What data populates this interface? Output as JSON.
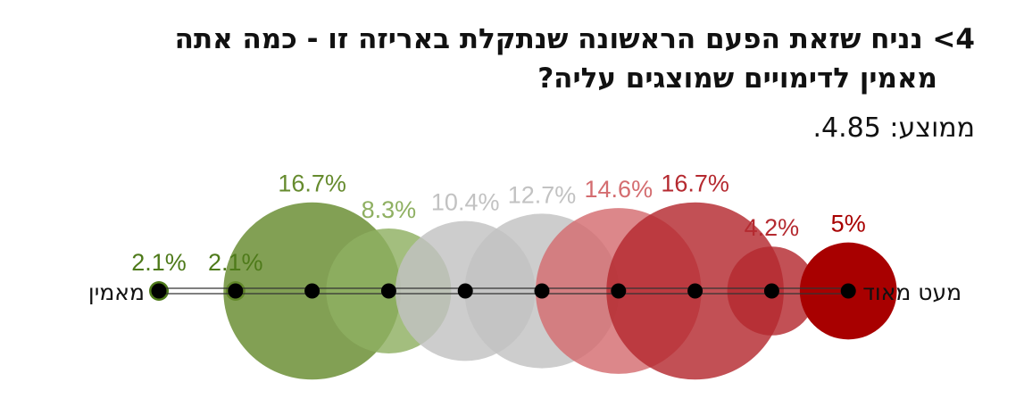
{
  "chart_data": {
    "type": "bubble-scale",
    "title_line1": "4> נניח שזאת הפעם הראשונה שנתקלת באריזה זו - כמה אתה",
    "title_line2": "מאמין לדימויים שמוצגים עליה?",
    "subtitle": "ממוצע: 4.85.",
    "left_label": "מאמין",
    "right_label": "מעט מאוד",
    "points": [
      {
        "value": 2.1,
        "label": "2.1%",
        "color": "#4e7a1a"
      },
      {
        "value": 2.1,
        "label": "2.1%",
        "color": "#4e7a1a"
      },
      {
        "value": 16.7,
        "label": "16.7%",
        "color": "#668b2e"
      },
      {
        "value": 8.3,
        "label": "8.3%",
        "color": "#8fb062"
      },
      {
        "value": 10.4,
        "label": "10.4%",
        "color": "#c2c2c2"
      },
      {
        "value": 12.7,
        "label": "12.7%",
        "color": "#c2c2c2"
      },
      {
        "value": 14.6,
        "label": "14.6%",
        "color": "#d46d70"
      },
      {
        "value": 16.7,
        "label": "16.7%",
        "color": "#b52a30"
      },
      {
        "value": 4.2,
        "label": "4.2%",
        "color": "#b52a30"
      },
      {
        "value": 5,
        "label": "5%",
        "color": "#a80000"
      }
    ]
  }
}
